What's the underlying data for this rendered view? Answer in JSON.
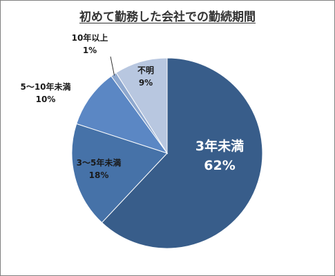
{
  "chart_data": {
    "type": "pie",
    "title": "初めて勤務した会社での勤続期間",
    "slices": [
      {
        "name": "3年未満",
        "value": 62,
        "label": "62%",
        "color": "#385d8a"
      },
      {
        "name": "3〜5年未満",
        "value": 18,
        "label": "18%",
        "color": "#4672a8"
      },
      {
        "name": "5〜10年未満",
        "value": 10,
        "label": "10%",
        "color": "#5b87c4"
      },
      {
        "name": "10年以上",
        "value": 1,
        "label": "1%",
        "color": "#8ea8cf"
      },
      {
        "name": "不明",
        "value": 9,
        "label": "9%",
        "color": "#b8c7e0"
      }
    ],
    "start_angle_deg": 0,
    "direction": "clockwise",
    "legend": "none"
  }
}
